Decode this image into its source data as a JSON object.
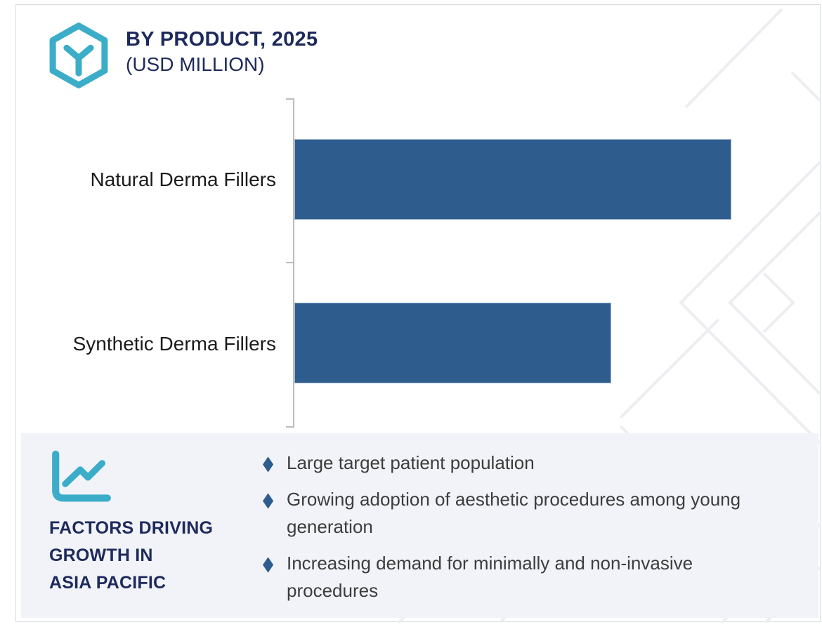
{
  "header": {
    "title_line1": "BY PRODUCT, 2025",
    "title_line2": "(USD MILLION)",
    "logo_icon": "hexagon-y-icon"
  },
  "chart_data": {
    "type": "bar",
    "orientation": "horizontal",
    "title": "BY PRODUCT, 2025 (USD MILLION)",
    "xlabel": "",
    "ylabel": "",
    "categories": [
      "Natural Derma Fillers",
      "Synthetic Derma Fillers"
    ],
    "relative_values": [
      1.0,
      0.725
    ],
    "values_labeled_on_chart": false,
    "value_axis_ticks": "none shown",
    "gridlines": false,
    "legend": "none",
    "bar_color": "#2e5c8c"
  },
  "factors_panel": {
    "icon": "line-chart-icon",
    "heading_lines": [
      "FACTORS DRIVING",
      "GROWTH IN",
      "ASIA PACIFIC"
    ],
    "bullets": [
      {
        "text": "Large target patient population"
      },
      {
        "text": "Growing adoption of aesthetic procedures among  young generation"
      },
      {
        "text": "Increasing demand for minimally and non-invasive procedures"
      }
    ]
  },
  "colors": {
    "accent_teal": "#3badc9",
    "navy": "#1e2a5c",
    "bar_blue": "#2e5c8c",
    "bullet_diamond": "#2d5c8f",
    "panel_background": "#f1f3f8",
    "frame_border": "#d9dcdf",
    "axis_gray": "#bcbcbc",
    "watermark_gray": "#eceef1"
  }
}
